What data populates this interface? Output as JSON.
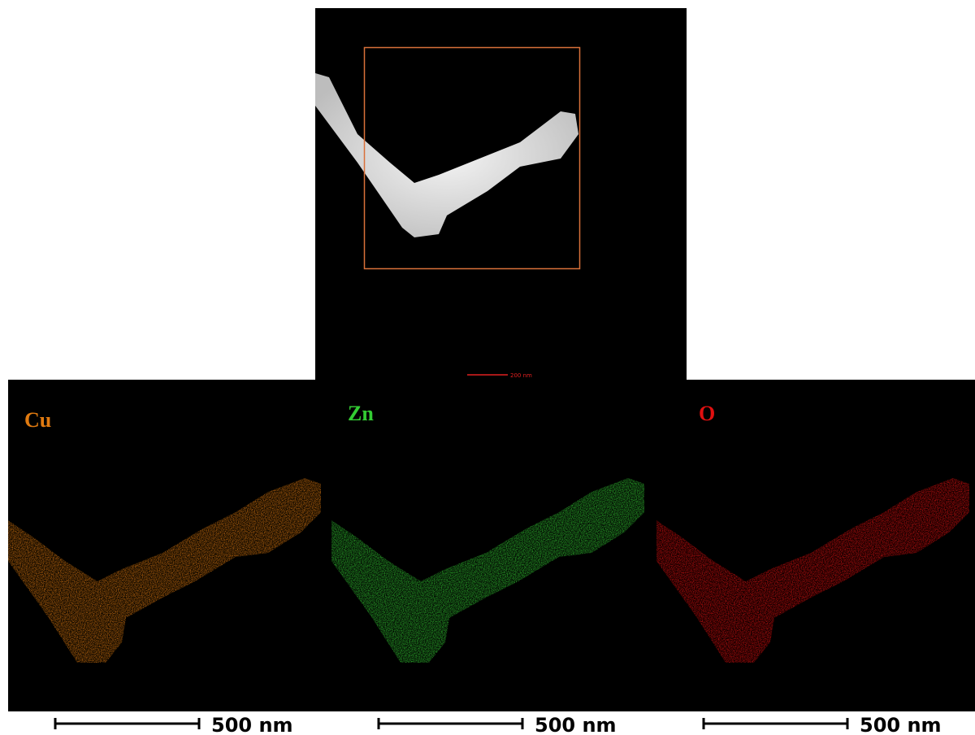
{
  "top_image": {
    "scale_label": "200 nm"
  },
  "panels": [
    {
      "label": "Cu",
      "color": "#e07a10",
      "scale_label": "500 nm"
    },
    {
      "label": "Zn",
      "color": "#33cc33",
      "scale_label": "500 nm"
    },
    {
      "label": "O",
      "color": "#e01010",
      "scale_label": "500 nm"
    }
  ]
}
